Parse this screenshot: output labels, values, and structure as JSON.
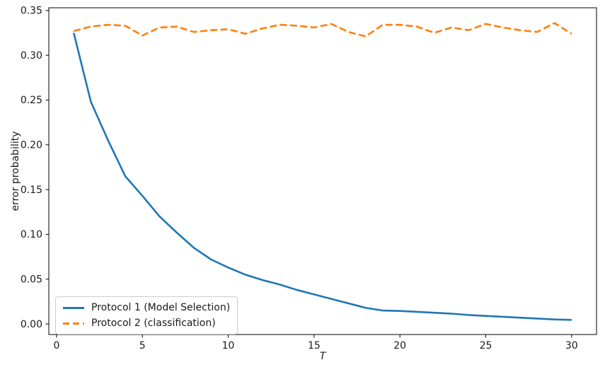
{
  "figure": {
    "background": "#ffffff"
  },
  "chart_data": {
    "type": "line",
    "title": "",
    "xlabel": "T",
    "ylabel": "error probability",
    "x": [
      1,
      2,
      3,
      4,
      5,
      6,
      7,
      8,
      9,
      10,
      11,
      12,
      13,
      14,
      15,
      16,
      17,
      18,
      19,
      20,
      21,
      22,
      23,
      24,
      25,
      26,
      27,
      28,
      29,
      30
    ],
    "series": [
      {
        "name": "Protocol 1 (Model Selection)",
        "color": "#1f77b4",
        "style": "solid",
        "values": [
          0.325,
          0.248,
          0.205,
          0.165,
          0.143,
          0.12,
          0.102,
          0.085,
          0.072,
          0.063,
          0.055,
          0.049,
          0.044,
          0.038,
          0.033,
          0.028,
          0.023,
          0.018,
          0.015,
          0.0145,
          0.0135,
          0.0125,
          0.0115,
          0.01,
          0.009,
          0.008,
          0.007,
          0.006,
          0.005,
          0.0045
        ]
      },
      {
        "name": "Protocol 2 (classification)",
        "color": "#ff7f0e",
        "style": "dashed",
        "values": [
          0.327,
          0.332,
          0.334,
          0.333,
          0.322,
          0.331,
          0.332,
          0.326,
          0.328,
          0.329,
          0.324,
          0.33,
          0.334,
          0.333,
          0.331,
          0.335,
          0.326,
          0.321,
          0.334,
          0.334,
          0.332,
          0.325,
          0.331,
          0.328,
          0.335,
          0.331,
          0.328,
          0.326,
          0.336,
          0.324
        ]
      }
    ],
    "xlim": [
      -0.45,
      31.45
    ],
    "ylim": [
      -0.0118,
      0.353
    ],
    "xtick_values": [
      0,
      5,
      10,
      15,
      20,
      25,
      30
    ],
    "xtick_labels": [
      "0",
      "5",
      "10",
      "15",
      "20",
      "25",
      "30"
    ],
    "ytick_values": [
      0.0,
      0.05,
      0.1,
      0.15,
      0.2,
      0.25,
      0.3,
      0.35
    ],
    "ytick_labels": [
      "0.00",
      "0.05",
      "0.10",
      "0.15",
      "0.20",
      "0.25",
      "0.30",
      "0.35"
    ],
    "grid": false,
    "legend": {
      "position": "lower left"
    }
  }
}
